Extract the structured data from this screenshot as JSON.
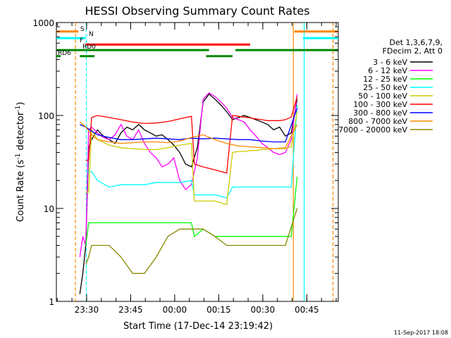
{
  "chart_data": {
    "type": "line",
    "title": "HESSI Observing Summary Count Rates",
    "xlabel": "Start Time (17-Dec-14 23:19:42)",
    "ylabel": "Count Rate (s⁻¹ detector⁻¹)",
    "ylabel_parts": [
      "Count Rate (s",
      "-1",
      " detector",
      "-1",
      ")"
    ],
    "y_scale": "log",
    "ylim": [
      1,
      1000
    ],
    "y_ticks": [
      1,
      10,
      100,
      1000
    ],
    "y_tick_labels": [
      "1",
      "10",
      "100",
      "1000"
    ],
    "xlim_min": [
      0,
      55
    ],
    "x_ticks_min": [
      10.3,
      25.3,
      40.3,
      55.3
    ],
    "x_tick_labels": [
      "23:30",
      "23:45",
      "00:00",
      "00:15",
      "00:30",
      "00:45"
    ],
    "x_tick_positions_min": [
      10.3,
      25.3,
      40.3,
      55.3,
      70.3,
      85.3
    ],
    "xlim_range_min": [
      0,
      96
    ],
    "timestamp": "11-Sep-2017 18:08",
    "legend_header": [
      "Det 1,3,6,7,9,",
      "FDecim 2, Att 0"
    ],
    "legend_position": "right",
    "series": [
      {
        "name": "3 - 6 keV",
        "color": "#000000",
        "x": [
          8,
          9,
          10,
          11,
          12,
          14,
          16,
          18,
          20,
          22,
          24,
          26,
          28,
          30,
          32,
          34,
          36,
          38,
          40,
          42,
          44,
          46,
          48,
          50,
          52,
          54,
          56,
          58,
          60,
          62,
          64,
          66,
          68,
          70,
          72,
          74,
          76,
          78,
          80,
          82
        ],
        "y": [
          1.2,
          2,
          4,
          45,
          55,
          70,
          60,
          55,
          50,
          65,
          75,
          70,
          80,
          70,
          65,
          60,
          62,
          55,
          48,
          40,
          30,
          28,
          45,
          140,
          170,
          150,
          130,
          110,
          90,
          95,
          100,
          95,
          90,
          85,
          80,
          70,
          75,
          60,
          65,
          150
        ]
      },
      {
        "name": "6 - 12 keV",
        "color": "#ff00ff",
        "x": [
          8,
          9,
          10,
          11,
          12,
          14,
          16,
          18,
          20,
          22,
          24,
          26,
          28,
          30,
          32,
          34,
          36,
          38,
          40,
          42,
          44,
          46,
          48,
          50,
          52,
          54,
          56,
          58,
          60,
          62,
          64,
          66,
          68,
          70,
          72,
          74,
          76,
          78,
          80,
          82
        ],
        "y": [
          3,
          5,
          4,
          70,
          75,
          65,
          58,
          55,
          62,
          80,
          60,
          55,
          70,
          50,
          40,
          35,
          28,
          30,
          35,
          20,
          16,
          18,
          35,
          150,
          175,
          160,
          140,
          120,
          95,
          90,
          85,
          70,
          60,
          50,
          45,
          40,
          38,
          40,
          55,
          170
        ]
      },
      {
        "name": "12 - 25 keV",
        "color": "#00ff00",
        "x": [
          10,
          11,
          14,
          18,
          22,
          26,
          30,
          34,
          38,
          42,
          46,
          47,
          50,
          54,
          58,
          62,
          66,
          70,
          74,
          76,
          78,
          80,
          82
        ],
        "y": [
          4,
          7,
          7,
          7,
          7,
          7,
          7,
          7,
          7,
          7,
          7,
          5,
          6,
          5,
          5,
          5,
          5,
          5,
          5,
          5,
          5,
          5,
          22
        ]
      },
      {
        "name": "25 - 50 keV",
        "color": "#00ffff",
        "x": [
          10,
          11,
          12,
          14,
          18,
          22,
          26,
          30,
          34,
          38,
          42,
          46,
          47,
          50,
          54,
          58,
          60,
          62,
          64,
          66,
          68,
          70,
          72,
          74,
          76,
          78,
          80,
          82
        ],
        "y": [
          25,
          25,
          25,
          20,
          17,
          18,
          18,
          18,
          19,
          19,
          19,
          20,
          14,
          14,
          14,
          13,
          17,
          17,
          17,
          17,
          17,
          17,
          17,
          17,
          17,
          17,
          17,
          130
        ]
      },
      {
        "name": "50 - 100 keV",
        "color": "#cccc00",
        "x": [
          10,
          11,
          12,
          14,
          18,
          22,
          26,
          30,
          34,
          38,
          42,
          46,
          47,
          50,
          54,
          58,
          60,
          62,
          64,
          66,
          68,
          70,
          72,
          74,
          76,
          78,
          80,
          82
        ],
        "y": [
          15,
          15,
          70,
          55,
          48,
          45,
          44,
          43,
          43,
          45,
          48,
          50,
          12,
          12,
          12,
          11,
          40,
          41,
          41,
          42,
          42,
          43,
          43,
          44,
          44,
          44,
          46,
          110
        ]
      },
      {
        "name": "100 - 300 keV",
        "color": "#ff0000",
        "x": [
          10,
          11,
          12,
          14,
          18,
          22,
          26,
          30,
          34,
          38,
          42,
          46,
          47,
          50,
          54,
          58,
          60,
          62,
          64,
          66,
          68,
          70,
          72,
          74,
          76,
          78,
          80,
          82
        ],
        "y": [
          33,
          33,
          95,
          100,
          95,
          90,
          85,
          82,
          83,
          86,
          92,
          98,
          30,
          28,
          26,
          24,
          100,
          98,
          96,
          94,
          92,
          90,
          88,
          88,
          88,
          90,
          96,
          160
        ]
      },
      {
        "name": "300 - 800 keV",
        "color": "#0000ff",
        "x": [
          8,
          10,
          12,
          14,
          18,
          22,
          26,
          30,
          34,
          38,
          42,
          46,
          50,
          54,
          58,
          62,
          66,
          70,
          74,
          78,
          82
        ],
        "y": [
          80,
          75,
          68,
          62,
          58,
          55,
          55,
          56,
          57,
          56,
          55,
          57,
          56,
          57,
          56,
          55,
          55,
          53,
          52,
          52,
          120
        ]
      },
      {
        "name": "800 - 7000 keV",
        "color": "#ff8800",
        "x": [
          8,
          10,
          12,
          14,
          18,
          22,
          26,
          30,
          34,
          38,
          42,
          46,
          50,
          54,
          58,
          62,
          66,
          70,
          74,
          78,
          82
        ],
        "y": [
          85,
          75,
          62,
          55,
          52,
          50,
          51,
          52,
          52,
          51,
          53,
          58,
          62,
          55,
          50,
          47,
          46,
          45,
          44,
          45,
          80
        ]
      },
      {
        "name": "7000 - 20000 keV",
        "color": "#888800",
        "x": [
          10,
          11,
          12,
          14,
          18,
          22,
          26,
          30,
          34,
          38,
          42,
          46,
          50,
          54,
          58,
          62,
          66,
          70,
          74,
          78,
          82
        ],
        "y": [
          2.5,
          3,
          4,
          4,
          4,
          3,
          2,
          2,
          3,
          5,
          6,
          6,
          6,
          5,
          4,
          4,
          4,
          4,
          4,
          4,
          10
        ]
      }
    ],
    "state_bars": [
      {
        "label": "S",
        "color": "#ff8800",
        "level": 800,
        "segments": [
          [
            0,
            7.5
          ],
          [
            81,
            96
          ]
        ]
      },
      {
        "label": "N",
        "color": "#00ffff",
        "level": 680,
        "segments": [
          [
            0,
            10
          ],
          [
            84,
            96
          ]
        ]
      },
      {
        "label": "F",
        "color": "#ff0000",
        "level": 580,
        "segments": [
          [
            10,
            66
          ]
        ]
      },
      {
        "label": "RD0",
        "color": "#008800",
        "level": 505,
        "segments": [
          [
            0,
            52
          ],
          [
            61,
            96
          ]
        ]
      },
      {
        "label": "RD6",
        "color": "#008800",
        "level": 435,
        "segments": [
          [
            0,
            1.5
          ],
          [
            8,
            13
          ],
          [
            51,
            60
          ]
        ]
      }
    ],
    "vlines": [
      {
        "x": 6.5,
        "color": "#ff8800",
        "style": "dashed"
      },
      {
        "x": 10.2,
        "color": "#00ffff",
        "style": "dashed"
      },
      {
        "x": 80.7,
        "color": "#ff8800",
        "style": "solid"
      },
      {
        "x": 84.4,
        "color": "#00ffff",
        "style": "solid"
      },
      {
        "x": 94.2,
        "color": "#ff8800",
        "style": "dashed"
      }
    ]
  }
}
